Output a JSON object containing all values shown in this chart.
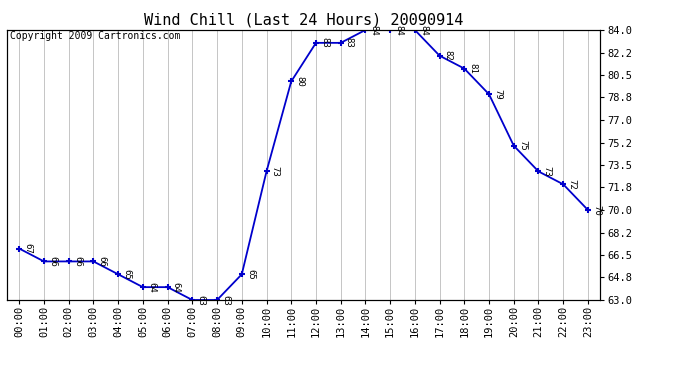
{
  "title": "Wind Chill (Last 24 Hours) 20090914",
  "copyright_text": "Copyright 2009 Cartronics.com",
  "hours": [
    0,
    1,
    2,
    3,
    4,
    5,
    6,
    7,
    8,
    9,
    10,
    11,
    12,
    13,
    14,
    15,
    16,
    17,
    18,
    19,
    20,
    21,
    22,
    23
  ],
  "values": [
    67,
    66,
    66,
    66,
    65,
    64,
    64,
    63,
    63,
    65,
    73,
    80,
    83,
    83,
    84,
    84,
    84,
    82,
    81,
    79,
    75,
    73,
    72,
    70
  ],
  "x_labels": [
    "00:00",
    "01:00",
    "02:00",
    "03:00",
    "04:00",
    "05:00",
    "06:00",
    "07:00",
    "08:00",
    "09:00",
    "10:00",
    "11:00",
    "12:00",
    "13:00",
    "14:00",
    "15:00",
    "16:00",
    "17:00",
    "18:00",
    "19:00",
    "20:00",
    "21:00",
    "22:00",
    "23:00"
  ],
  "y_ticks": [
    63.0,
    64.8,
    66.5,
    68.2,
    70.0,
    71.8,
    73.5,
    75.2,
    77.0,
    78.8,
    80.5,
    82.2,
    84.0
  ],
  "ylim": [
    63.0,
    84.0
  ],
  "line_color": "#0000cc",
  "marker_color": "#0000cc",
  "bg_color": "#ffffff",
  "grid_color": "#bbbbbb",
  "text_color": "#000000",
  "title_fontsize": 11,
  "label_fontsize": 7.5,
  "copyright_fontsize": 7,
  "annotation_fontsize": 6.5
}
